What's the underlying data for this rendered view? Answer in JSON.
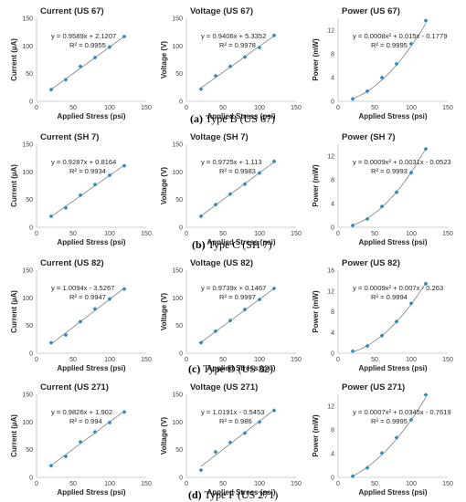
{
  "captions": [
    {
      "label": "(a)",
      "text": " Type B (US 67)"
    },
    {
      "label": "(b)",
      "text": " Type C (SH 7)"
    },
    {
      "label": "(c)",
      "text": " Type D (US 82)"
    },
    {
      "label": "(d)",
      "text": " Type F (US 271)"
    }
  ],
  "colors": {
    "marker": "#2e8bc0",
    "trendline": "#7f7f7f",
    "axis": "#bfbfbf"
  },
  "chart_data": [
    {
      "type": "scatter",
      "title": "Current (US 67)",
      "xlabel": "Applied Stress (psi)",
      "ylabel": "Current (µA)",
      "xlim": [
        0,
        150
      ],
      "ylim": [
        0,
        150
      ],
      "xticks": [
        0,
        50,
        100,
        150
      ],
      "yticks": [
        0,
        50,
        100,
        150
      ],
      "x": [
        20,
        40,
        60,
        80,
        100,
        120
      ],
      "y": [
        21,
        39,
        63,
        79,
        98,
        117
      ],
      "fit": {
        "kind": "linear",
        "coef": [
          0.9589,
          2.1207
        ]
      },
      "equation": "y = 0.9589x + 2.1207",
      "r2": "R² = 0.9955"
    },
    {
      "type": "scatter",
      "title": "Voltage (US 67)",
      "xlabel": "Applied Stress (psi)",
      "ylabel": "Voltage (V)",
      "xlim": [
        0,
        150
      ],
      "ylim": [
        0,
        150
      ],
      "xticks": [
        0,
        50,
        100,
        150
      ],
      "yticks": [
        0,
        50,
        100,
        150
      ],
      "x": [
        20,
        40,
        60,
        80,
        100,
        120
      ],
      "y": [
        22,
        46,
        63,
        80,
        97,
        119
      ],
      "fit": {
        "kind": "linear",
        "coef": [
          0.9406,
          5.3352
        ]
      },
      "equation": "y = 0.9406x + 5.3352",
      "r2": "R² = 0.9978"
    },
    {
      "type": "scatter",
      "title": "Power (US 67)",
      "xlabel": "Applied Stress (psi)",
      "ylabel": "Power (mW)",
      "xlim": [
        0,
        150
      ],
      "ylim": [
        0,
        14
      ],
      "xticks": [
        0,
        50,
        100,
        150
      ],
      "yticks": [
        0,
        4,
        8,
        12
      ],
      "x": [
        20,
        40,
        60,
        80,
        100,
        120
      ],
      "y": [
        0.4,
        1.7,
        4.0,
        6.3,
        9.7,
        13.6
      ],
      "fit": {
        "kind": "quadratic",
        "coef": [
          0.0008,
          0.015,
          -0.1779
        ]
      },
      "equation": "y = 0.0008x² + 0.015x - 0.1779",
      "r2": "R² = 0.9995"
    },
    {
      "type": "scatter",
      "title": "Current (SH 7)",
      "xlabel": "Applied Stress (psi)",
      "ylabel": "Current (µA)",
      "xlim": [
        0,
        150
      ],
      "ylim": [
        0,
        150
      ],
      "xticks": [
        0,
        50,
        100,
        150
      ],
      "yticks": [
        0,
        50,
        100,
        150
      ],
      "x": [
        20,
        40,
        60,
        80,
        100,
        120
      ],
      "y": [
        20,
        35,
        58,
        77,
        94,
        111
      ],
      "fit": {
        "kind": "linear",
        "coef": [
          0.9287,
          0.8164
        ]
      },
      "equation": "y = 0.9287x + 0.8164",
      "r2": "R² = 0.9934"
    },
    {
      "type": "scatter",
      "title": "Voltage (SH 7)",
      "xlabel": "Applied Stress (psi)",
      "ylabel": "Voltage (V)",
      "xlim": [
        0,
        150
      ],
      "ylim": [
        0,
        150
      ],
      "xticks": [
        0,
        50,
        100,
        150
      ],
      "yticks": [
        0,
        50,
        100,
        150
      ],
      "x": [
        20,
        40,
        60,
        80,
        100,
        120
      ],
      "y": [
        20,
        41,
        60,
        78,
        98,
        119
      ],
      "fit": {
        "kind": "linear",
        "coef": [
          0.9725,
          1.113
        ]
      },
      "equation": "y = 0.9725x + 1.113",
      "r2": "R² = 0.9983"
    },
    {
      "type": "scatter",
      "title": "Power (SH 7)",
      "xlabel": "Applied Stress (psi)",
      "ylabel": "Power (mW)",
      "xlim": [
        0,
        150
      ],
      "ylim": [
        0,
        14
      ],
      "xticks": [
        0,
        50,
        100,
        150
      ],
      "yticks": [
        0,
        4,
        8,
        12
      ],
      "x": [
        20,
        40,
        60,
        80,
        100,
        120
      ],
      "y": [
        0.3,
        1.4,
        3.5,
        5.9,
        9.2,
        13.2
      ],
      "fit": {
        "kind": "quadratic",
        "coef": [
          0.0009,
          0.0031,
          -0.0523
        ]
      },
      "equation": "y = 0.0009x² + 0.0031x - 0.0523",
      "r2": "R² = 0.9993"
    },
    {
      "type": "scatter",
      "title": "Current (US 82)",
      "xlabel": "Applied Stress (psi)",
      "ylabel": "Current (µA)",
      "xlim": [
        0,
        150
      ],
      "ylim": [
        0,
        150
      ],
      "xticks": [
        0,
        50,
        100,
        150
      ],
      "yticks": [
        0,
        50,
        100,
        150
      ],
      "x": [
        20,
        40,
        60,
        80,
        100,
        120
      ],
      "y": [
        19,
        33,
        57,
        80,
        98,
        116
      ],
      "fit": {
        "kind": "linear",
        "coef": [
          1.0094,
          -3.5267
        ]
      },
      "equation": "y = 1.0094x - 3.5267",
      "r2": "R² = 0.9947"
    },
    {
      "type": "scatter",
      "title": "Voltage (US 82)",
      "xlabel": "Applied Stress (psi)",
      "ylabel": "Voltage (V)",
      "xlim": [
        0,
        150
      ],
      "ylim": [
        0,
        150
      ],
      "xticks": [
        0,
        50,
        100,
        150
      ],
      "yticks": [
        0,
        50,
        100,
        150
      ],
      "x": [
        20,
        40,
        60,
        80,
        100,
        120
      ],
      "y": [
        19,
        40,
        59,
        79,
        97,
        117
      ],
      "fit": {
        "kind": "linear",
        "coef": [
          0.9739,
          0.1467
        ]
      },
      "equation": "y = 0.9739x + 0.1467",
      "r2": "R² = 0.9997"
    },
    {
      "type": "scatter",
      "title": "Power (US 82)",
      "xlabel": "Applied Stress (psi)",
      "ylabel": "Power (mW)",
      "xlim": [
        0,
        150
      ],
      "ylim": [
        0,
        16
      ],
      "xticks": [
        0,
        50,
        100,
        150
      ],
      "yticks": [
        0,
        4,
        8,
        12,
        16
      ],
      "x": [
        20,
        40,
        60,
        80,
        100,
        120
      ],
      "y": [
        0.4,
        1.4,
        3.4,
        6.1,
        9.6,
        13.4
      ],
      "fit": {
        "kind": "quadratic",
        "coef": [
          0.0009,
          0.007,
          -0.263
        ]
      },
      "equation": "y = 0.0009x² + 0.007x - 0.263",
      "r2": "R² = 0.9994"
    },
    {
      "type": "scatter",
      "title": "Current (US 271)",
      "xlabel": "Applied Stress (psi)",
      "ylabel": "Current (µA)",
      "xlim": [
        0,
        150
      ],
      "ylim": [
        0,
        150
      ],
      "xticks": [
        0,
        50,
        100,
        150
      ],
      "yticks": [
        0,
        50,
        100,
        150
      ],
      "x": [
        20,
        40,
        60,
        80,
        100,
        120
      ],
      "y": [
        21,
        38,
        64,
        82,
        99,
        118
      ],
      "fit": {
        "kind": "linear",
        "coef": [
          0.9826,
          1.902
        ]
      },
      "equation": "y = 0.9826x + 1.902",
      "r2": "R² = 0.994"
    },
    {
      "type": "scatter",
      "title": "Voltage (US 271)",
      "xlabel": "Applied Stress (psi)",
      "ylabel": "Voltage (V)",
      "xlim": [
        0,
        150
      ],
      "ylim": [
        0,
        150
      ],
      "xticks": [
        0,
        50,
        100,
        150
      ],
      "yticks": [
        0,
        50,
        100,
        150
      ],
      "x": [
        20,
        40,
        60,
        80,
        100,
        120
      ],
      "y": [
        13,
        46,
        63,
        80,
        100,
        121
      ],
      "fit": {
        "kind": "linear",
        "coef": [
          1.0191,
          -0.5453
        ]
      },
      "equation": "y = 1.0191x - 0.5453",
      "r2": "R² = 0.986"
    },
    {
      "type": "scatter",
      "title": "Power (US 271)",
      "xlabel": "Applied Stress (psi)",
      "ylabel": "Power (mW)",
      "xlim": [
        0,
        150
      ],
      "ylim": [
        0,
        14
      ],
      "xticks": [
        0,
        50,
        100,
        150
      ],
      "yticks": [
        0,
        4,
        8,
        12
      ],
      "x": [
        20,
        40,
        60,
        80,
        100,
        120
      ],
      "y": [
        0.2,
        1.6,
        4.1,
        6.7,
        9.7,
        13.9
      ],
      "fit": {
        "kind": "quadratic",
        "coef": [
          0.0007,
          0.0345,
          -0.7619
        ]
      },
      "equation": "y = 0.0007x² + 0.0345x - 0.7619",
      "r2": "R² = 0.9995"
    }
  ]
}
